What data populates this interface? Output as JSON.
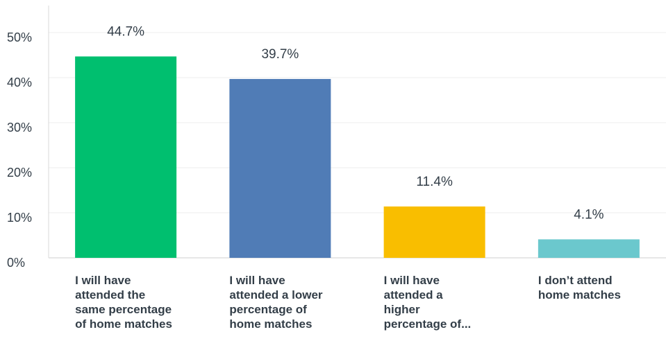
{
  "chart_data": {
    "type": "bar",
    "categories": [
      [
        "I will have",
        "attended the",
        "same percentage",
        "of home matches"
      ],
      [
        "I will have",
        "attended a lower",
        "percentage of",
        "home matches"
      ],
      [
        "I will have",
        "attended a",
        "higher",
        "percentage of..."
      ],
      [
        "I don’t attend",
        "home matches"
      ]
    ],
    "values": [
      44.7,
      39.7,
      11.4,
      4.1
    ],
    "value_labels": [
      "44.7%",
      "39.7%",
      "11.4%",
      "4.1%"
    ],
    "colors": [
      "#00bf6f",
      "#507cb6",
      "#f9be00",
      "#6bc8cd"
    ],
    "y_ticks": [
      "0%",
      "10%",
      "20%",
      "30%",
      "40%",
      "50%"
    ],
    "ylim": [
      0,
      50
    ],
    "grid": true
  }
}
